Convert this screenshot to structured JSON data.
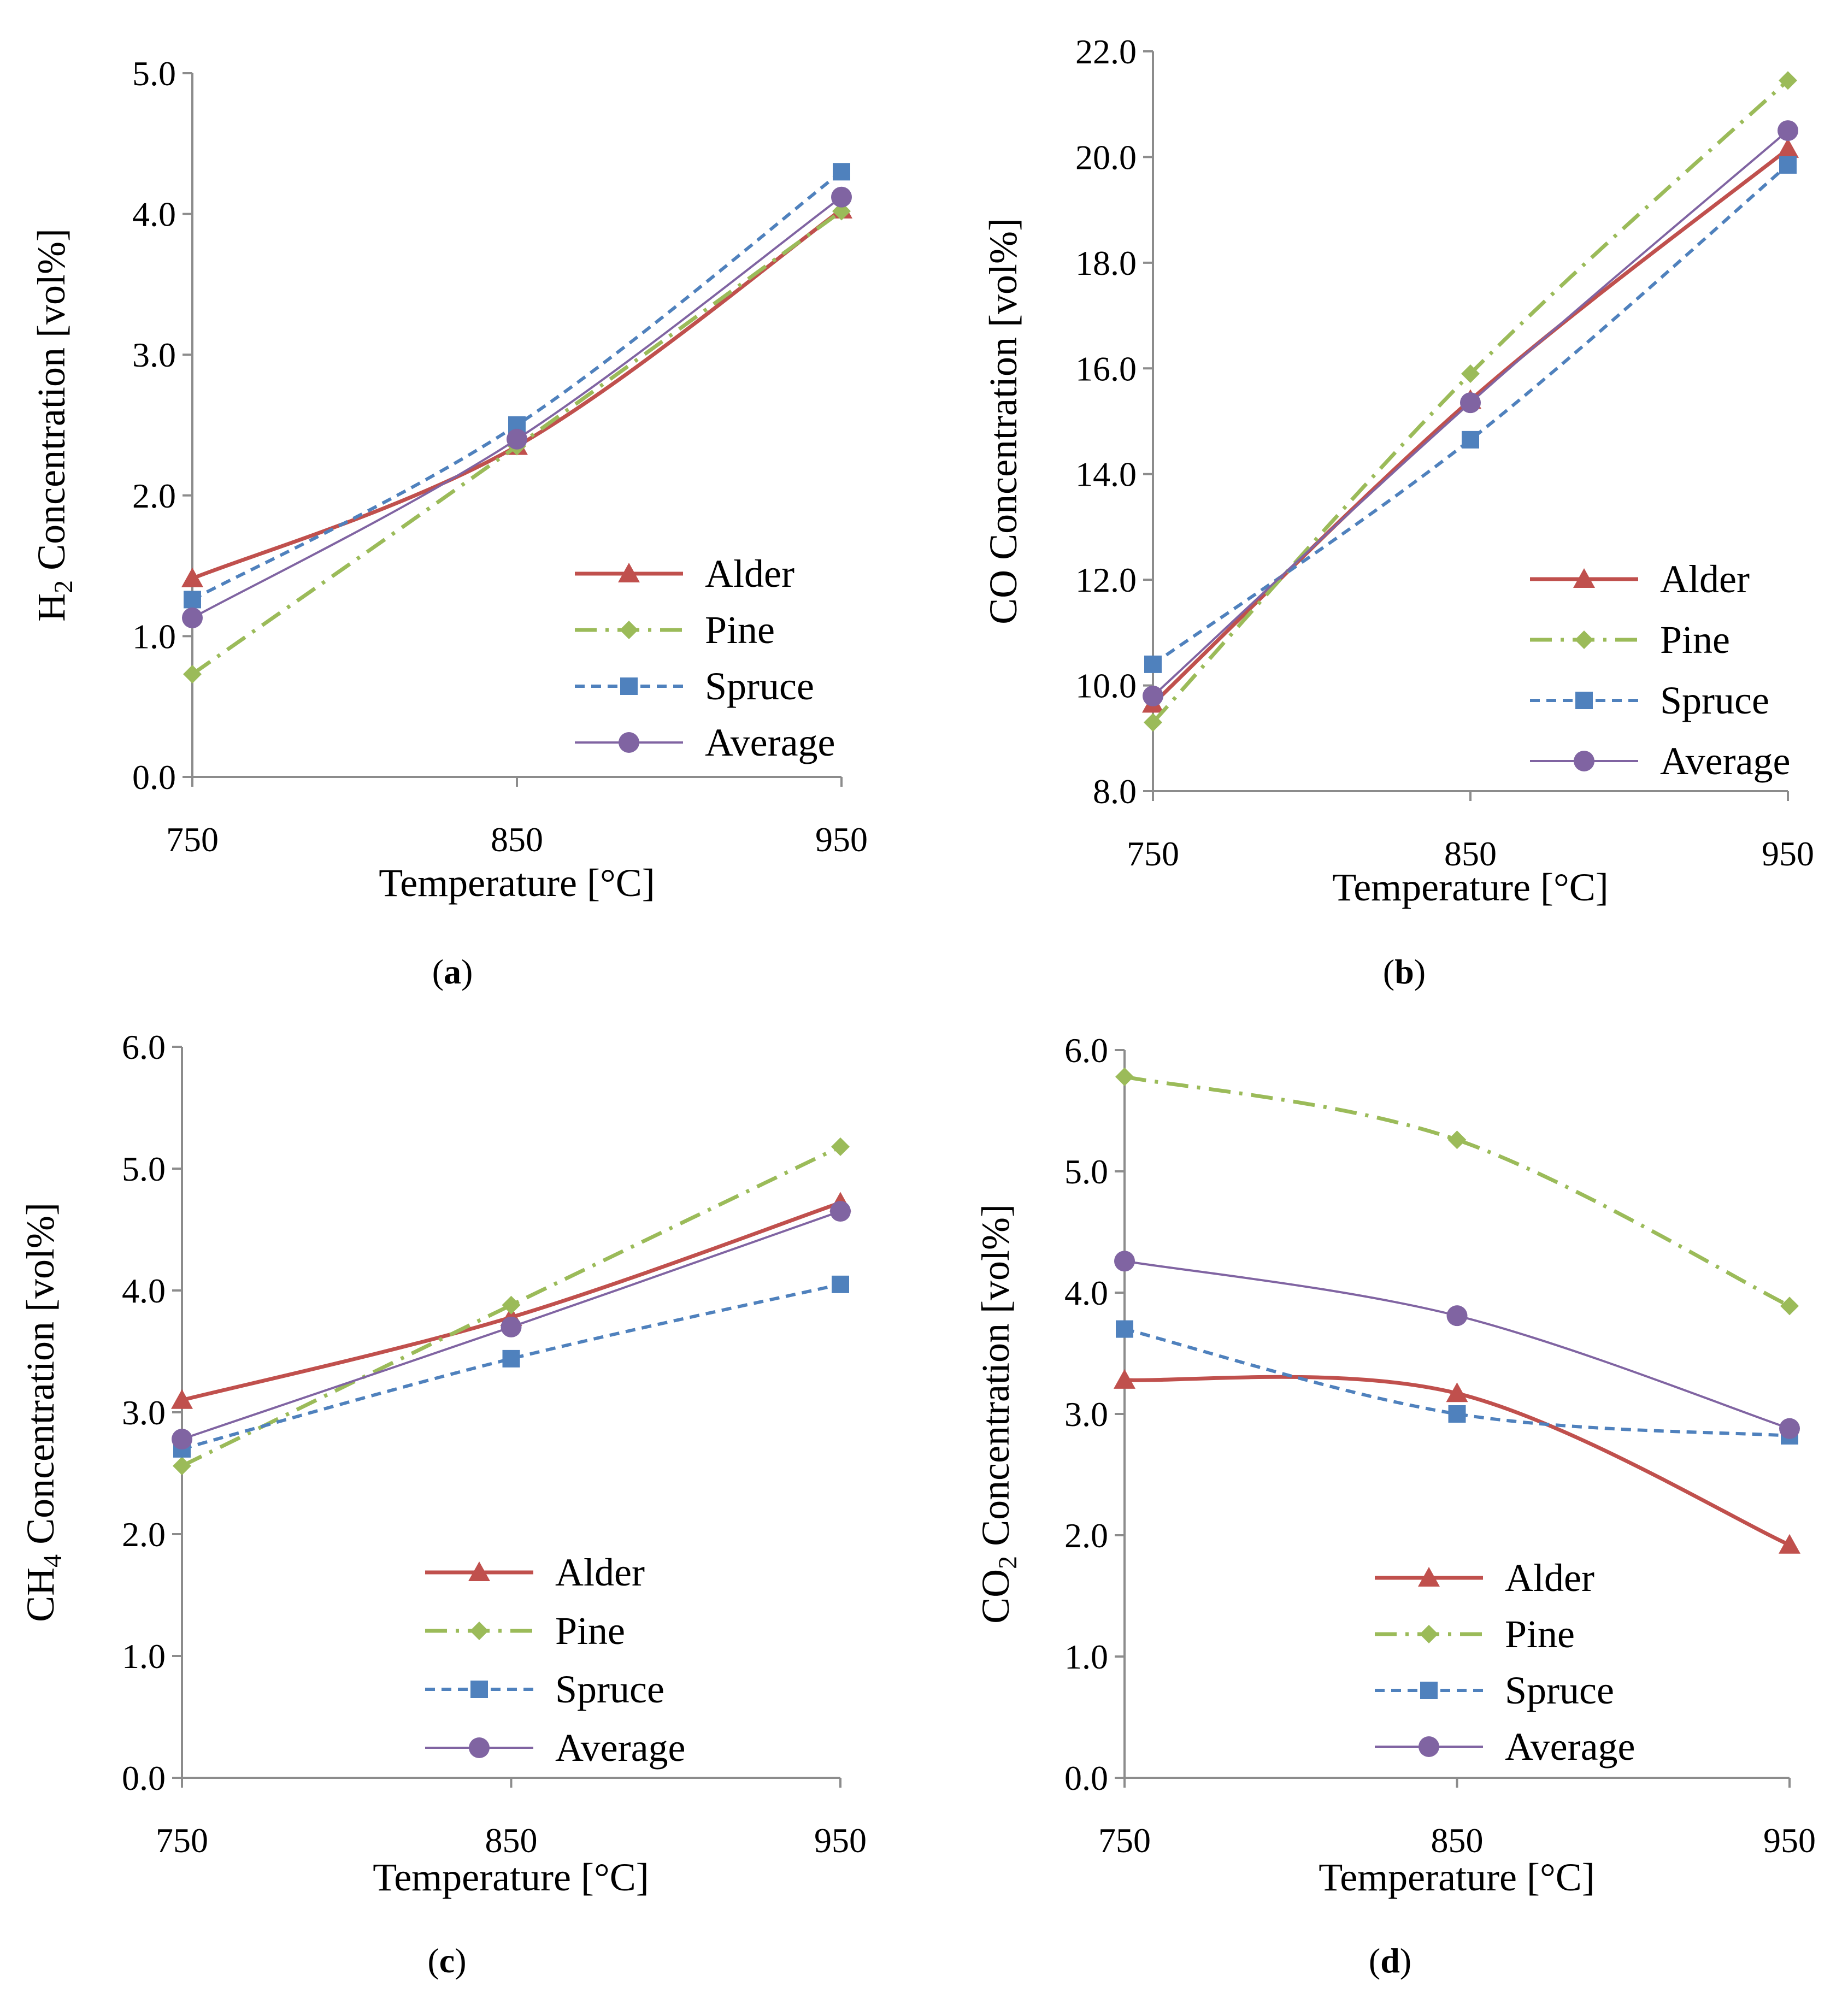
{
  "series_styles": [
    {
      "name": "Alder",
      "color": "#c0504d",
      "dash": "",
      "width": 7,
      "marker": "triangle"
    },
    {
      "name": "Pine",
      "color": "#9bbb59",
      "dash": "40,16,6,16",
      "width": 7,
      "marker": "diamond"
    },
    {
      "name": "Spruce",
      "color": "#4f81bd",
      "dash": "18,12",
      "width": 6,
      "marker": "square"
    },
    {
      "name": "Average",
      "color": "#8064a2",
      "dash": "",
      "width": 4,
      "marker": "circle"
    }
  ],
  "chart_data": [
    {
      "type": "line",
      "caption": "a",
      "title": "",
      "xlabel": "Temperature [°C]",
      "ylabel": {
        "prefix": "H",
        "sub": "2",
        "suffix": " Concentration [vol%]"
      },
      "x": [
        750,
        850,
        950
      ],
      "xticks": [
        "750",
        "850",
        "950"
      ],
      "ylim": [
        0,
        5
      ],
      "yticks": [
        "0.0",
        "1.0",
        "2.0",
        "3.0",
        "4.0",
        "5.0"
      ],
      "legend": "bottom-right",
      "series": [
        {
          "name": "Alder",
          "values": [
            1.41,
            2.35,
            4.03
          ]
        },
        {
          "name": "Pine",
          "values": [
            0.73,
            2.35,
            4.02
          ]
        },
        {
          "name": "Spruce",
          "values": [
            1.26,
            2.5,
            4.3
          ]
        },
        {
          "name": "Average",
          "values": [
            1.13,
            2.4,
            4.12
          ]
        }
      ]
    },
    {
      "type": "line",
      "caption": "b",
      "title": "",
      "xlabel": "Temperature [°C]",
      "ylabel": {
        "prefix": "CO",
        "sub": "",
        "suffix": " Concentration [vol%]"
      },
      "x": [
        750,
        850,
        950
      ],
      "xticks": [
        "750",
        "850",
        "950"
      ],
      "ylim": [
        8,
        22
      ],
      "yticks": [
        "8.0",
        "10.0",
        "12.0",
        "14.0",
        "16.0",
        "18.0",
        "20.0",
        "22.0"
      ],
      "legend": "bottom-right",
      "series": [
        {
          "name": "Alder",
          "values": [
            9.65,
            15.4,
            20.15
          ]
        },
        {
          "name": "Pine",
          "values": [
            9.3,
            15.9,
            21.45
          ]
        },
        {
          "name": "Spruce",
          "values": [
            10.4,
            14.65,
            19.85
          ]
        },
        {
          "name": "Average",
          "values": [
            9.8,
            15.35,
            20.5
          ]
        }
      ]
    },
    {
      "type": "line",
      "caption": "c",
      "title": "",
      "xlabel": "Temperature [°C]",
      "ylabel": {
        "prefix": "CH",
        "sub": "4",
        "suffix": " Concentration [vol%]"
      },
      "x": [
        750,
        850,
        950
      ],
      "xticks": [
        "750",
        "850",
        "950"
      ],
      "ylim": [
        0,
        6
      ],
      "yticks": [
        "0.0",
        "1.0",
        "2.0",
        "3.0",
        "4.0",
        "5.0",
        "6.0"
      ],
      "legend": "bottom-right",
      "series": [
        {
          "name": "Alder",
          "values": [
            3.1,
            3.78,
            4.72
          ]
        },
        {
          "name": "Pine",
          "values": [
            2.56,
            3.88,
            5.18
          ]
        },
        {
          "name": "Spruce",
          "values": [
            2.7,
            3.44,
            4.05
          ]
        },
        {
          "name": "Average",
          "values": [
            2.78,
            3.7,
            4.65
          ]
        }
      ]
    },
    {
      "type": "line",
      "caption": "d",
      "title": "",
      "xlabel": "Temperature [°C]",
      "ylabel": {
        "prefix": "CO",
        "sub": "2",
        "suffix": " Concentration [vol%]"
      },
      "x": [
        750,
        850,
        950
      ],
      "xticks": [
        "750",
        "850",
        "950"
      ],
      "ylim": [
        0,
        6
      ],
      "yticks": [
        "0.0",
        "1.0",
        "2.0",
        "3.0",
        "4.0",
        "5.0",
        "6.0"
      ],
      "legend": "bottom-right",
      "series": [
        {
          "name": "Alder",
          "values": [
            3.28,
            3.17,
            1.92
          ]
        },
        {
          "name": "Pine",
          "values": [
            5.78,
            5.26,
            3.89
          ]
        },
        {
          "name": "Spruce",
          "values": [
            3.7,
            3.0,
            2.82
          ]
        },
        {
          "name": "Average",
          "values": [
            4.26,
            3.81,
            2.88
          ]
        }
      ]
    }
  ]
}
